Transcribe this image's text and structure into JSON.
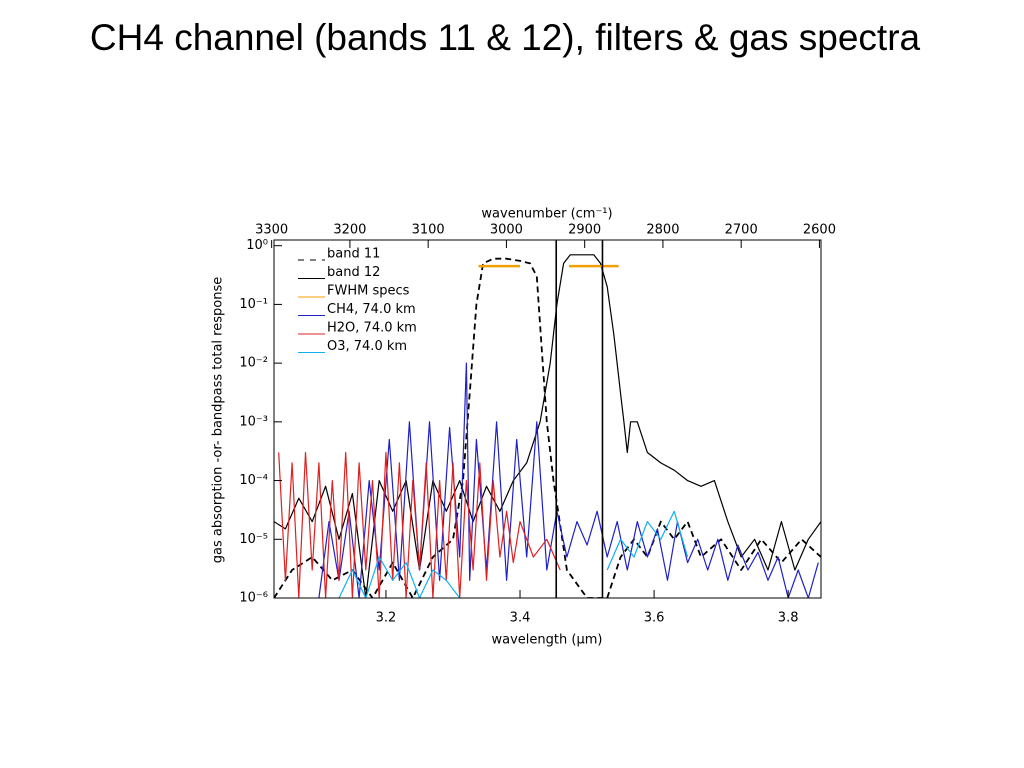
{
  "chart_data": {
    "type": "line",
    "title": "CH4 channel (bands 11 & 12), filters & gas spectra",
    "x_label": "wavelength (µm)",
    "x2_label": "wavenumber (cm⁻¹)",
    "y_label": "gas absorption -or- bandpass total response",
    "xlim": [
      3.033,
      3.849
    ],
    "xticks": [
      3.2,
      3.4,
      3.6,
      3.8
    ],
    "x2lim": [
      3297,
      2598
    ],
    "x2ticks": [
      3300,
      3200,
      3100,
      3000,
      2900,
      2800,
      2700,
      2600
    ],
    "ylim": [
      1e-06,
      1.25
    ],
    "log_y": true,
    "yticks": [
      {
        "value": 1,
        "label": "10⁰"
      },
      {
        "value": 0.1,
        "label": "10⁻¹"
      },
      {
        "value": 0.01,
        "label": "10⁻²"
      },
      {
        "value": 0.001,
        "label": "10⁻³"
      },
      {
        "value": 0.0001,
        "label": "10⁻⁴"
      },
      {
        "value": 1e-05,
        "label": "10⁻⁵"
      },
      {
        "value": 1e-06,
        "label": "10⁻⁶"
      }
    ],
    "legend": "upper left",
    "vlines": [
      3.454,
      3.523
    ],
    "series": [
      {
        "name": "band 11",
        "color": "#000000",
        "dashed": true,
        "x": [
          3.033,
          3.06,
          3.09,
          3.12,
          3.15,
          3.18,
          3.21,
          3.24,
          3.27,
          3.3,
          3.315,
          3.325,
          3.335,
          3.345,
          3.36,
          3.38,
          3.4,
          3.415,
          3.425,
          3.432,
          3.44,
          3.45,
          3.47,
          3.5,
          3.53,
          3.55,
          3.57,
          3.59,
          3.61,
          3.63,
          3.65,
          3.67,
          3.7,
          3.73,
          3.76,
          3.79,
          3.82,
          3.849
        ],
        "values": [
          1e-06,
          3e-06,
          5e-06,
          2e-06,
          3e-06,
          1e-06,
          4e-06,
          1e-06,
          5e-06,
          1e-05,
          0.0001,
          0.003,
          0.1,
          0.5,
          0.6,
          0.6,
          0.55,
          0.5,
          0.3,
          0.02,
          0.001,
          0.0001,
          3e-06,
          1e-06,
          1e-06,
          5e-06,
          1e-05,
          5e-06,
          2e-05,
          1e-05,
          2e-05,
          5e-06,
          1e-05,
          3e-06,
          1e-05,
          4e-06,
          1e-05,
          5e-06
        ]
      },
      {
        "name": "band 12",
        "color": "#000000",
        "x": [
          3.033,
          3.05,
          3.07,
          3.09,
          3.11,
          3.13,
          3.15,
          3.17,
          3.19,
          3.21,
          3.23,
          3.25,
          3.27,
          3.29,
          3.31,
          3.33,
          3.35,
          3.37,
          3.39,
          3.41,
          3.43,
          3.445,
          3.455,
          3.465,
          3.475,
          3.49,
          3.51,
          3.52,
          3.53,
          3.54,
          3.55,
          3.555,
          3.56,
          3.565,
          3.575,
          3.59,
          3.61,
          3.63,
          3.65,
          3.67,
          3.69,
          3.71,
          3.73,
          3.75,
          3.77,
          3.79,
          3.81,
          3.83,
          3.849
        ],
        "values": [
          2e-05,
          1.5e-05,
          5e-05,
          2e-05,
          8e-05,
          1e-05,
          6e-05,
          1e-06,
          0.0001,
          3e-05,
          0.0001,
          3e-06,
          0.0001,
          3e-05,
          0.0001,
          2e-05,
          8e-05,
          3e-05,
          0.0001,
          0.0002,
          0.001,
          0.01,
          0.1,
          0.5,
          0.7,
          0.7,
          0.7,
          0.5,
          0.2,
          0.03,
          0.003,
          0.001,
          0.0003,
          0.001,
          0.001,
          0.0003,
          0.0002,
          0.00015,
          0.0001,
          8e-05,
          0.0001,
          2e-05,
          5e-06,
          1e-05,
          3e-06,
          2e-05,
          3e-06,
          1e-05,
          2e-05
        ]
      },
      {
        "name": "FWHM specs",
        "color": "#f0a000",
        "width": 2.5,
        "x": [
          3.338,
          3.4,
          null,
          3.473,
          3.547
        ],
        "values": [
          0.45,
          0.45,
          null,
          0.45,
          0.45
        ]
      },
      {
        "name": "CH4, 74.0 km",
        "color": "#2020c8",
        "x": [
          3.1,
          3.115,
          3.13,
          3.145,
          3.16,
          3.175,
          3.19,
          3.205,
          3.22,
          3.235,
          3.25,
          3.265,
          3.28,
          3.295,
          3.31,
          3.32,
          3.325,
          3.335,
          3.35,
          3.365,
          3.38,
          3.395,
          3.41,
          3.425,
          3.44,
          3.455,
          3.47,
          3.485,
          3.5,
          3.515,
          3.53,
          3.545,
          3.56,
          3.575,
          3.59,
          3.605,
          3.62,
          3.635,
          3.65,
          3.665,
          3.68,
          3.695,
          3.71,
          3.725,
          3.74,
          3.755,
          3.77,
          3.785,
          3.8,
          3.815,
          3.83,
          3.845
        ],
        "values": [
          1e-06,
          2e-05,
          2e-06,
          3e-05,
          1e-06,
          0.0001,
          3e-06,
          0.0005,
          2e-06,
          0.001,
          3e-06,
          0.001,
          2e-06,
          0.0008,
          5e-06,
          0.01,
          2e-06,
          0.0005,
          3e-06,
          0.001,
          2e-06,
          0.0005,
          5e-06,
          0.001,
          3e-06,
          3e-05,
          5e-06,
          2e-05,
          8e-06,
          3e-05,
          5e-06,
          2e-05,
          3e-06,
          2e-05,
          5e-06,
          1.5e-05,
          2e-06,
          2e-05,
          4e-06,
          1e-05,
          3e-06,
          1e-05,
          2e-06,
          8e-06,
          3e-06,
          6e-06,
          2e-06,
          5e-06,
          1e-06,
          3e-06,
          1e-06,
          4e-06
        ]
      },
      {
        "name": "H2O, 74.0 km",
        "color": "#e02020",
        "x": [
          3.04,
          3.05,
          3.06,
          3.07,
          3.08,
          3.09,
          3.1,
          3.11,
          3.12,
          3.13,
          3.14,
          3.15,
          3.16,
          3.17,
          3.18,
          3.19,
          3.2,
          3.21,
          3.22,
          3.23,
          3.24,
          3.25,
          3.26,
          3.27,
          3.28,
          3.29,
          3.3,
          3.31,
          3.32,
          3.33,
          3.34,
          3.35,
          3.36,
          3.37,
          3.38,
          3.39,
          3.4,
          3.42,
          3.44,
          3.46
        ],
        "values": [
          0.0003,
          2e-06,
          0.0002,
          1e-06,
          0.0003,
          3e-06,
          0.0002,
          1e-06,
          0.0001,
          2e-06,
          0.0003,
          1e-06,
          0.0002,
          3e-06,
          0.0001,
          1e-06,
          0.0003,
          2e-06,
          0.0002,
          1e-06,
          0.0001,
          3e-06,
          0.0002,
          1e-06,
          0.0001,
          2e-06,
          0.0002,
          1e-06,
          0.0001,
          3e-06,
          0.0002,
          2e-06,
          0.0001,
          5e-06,
          3e-05,
          4e-06,
          2e-05,
          5e-06,
          1e-05,
          3e-06
        ]
      },
      {
        "name": "O3, 74.0 km",
        "color": "#10b0f0",
        "x": [
          3.13,
          3.15,
          3.17,
          3.19,
          3.21,
          3.23,
          3.25,
          3.27,
          3.29,
          3.31,
          null,
          3.53,
          3.55,
          3.57,
          3.59,
          3.61,
          3.63,
          3.65
        ],
        "values": [
          1e-06,
          3e-06,
          1e-06,
          5e-06,
          2e-06,
          4e-06,
          1e-06,
          3e-06,
          2e-06,
          1e-06,
          null,
          3e-06,
          1e-05,
          5e-06,
          2e-05,
          1e-05,
          3e-05,
          5e-06
        ]
      }
    ]
  }
}
